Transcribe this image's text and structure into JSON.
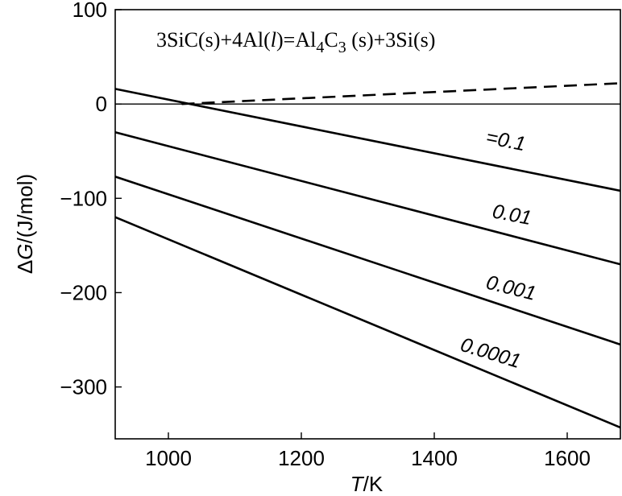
{
  "chart_data": {
    "type": "line",
    "title": "3SiC(s)+4Al(l)=Al4C3(s)+3Si(s)",
    "equation_parts": {
      "a": "3SiC(s)+4Al(",
      "l": "l",
      "b": ")=Al",
      "sub4": "4",
      "c": "C",
      "sub3": "3",
      "d": " (s)+3Si(s)"
    },
    "xlabel": {
      "var": "T",
      "unit": "/K"
    },
    "ylabel": {
      "delta": "Δ",
      "var": "G",
      "unit": "/(J/mol)"
    },
    "xlim": [
      920,
      1680
    ],
    "ylim": [
      -355,
      100
    ],
    "xticks": [
      1000,
      1200,
      1400,
      1600
    ],
    "xtick_labels": [
      "1000",
      "1200",
      "1400",
      "1600"
    ],
    "yticks": [
      100,
      0,
      -100,
      -200,
      -300
    ],
    "ytick_labels": [
      "100",
      "0",
      "−100",
      "−200",
      "−300"
    ],
    "zero_line": true,
    "series": [
      {
        "name": "=0.1",
        "segments": [
          {
            "style": "solid",
            "x": [
              920,
              1680
            ],
            "y": [
              16,
              -92
            ]
          },
          {
            "style": "dashed",
            "x": [
              1020,
              1680
            ],
            "y": [
              0,
              22
            ]
          }
        ]
      },
      {
        "name": "0.01",
        "segments": [
          {
            "style": "solid",
            "x": [
              920,
              1680
            ],
            "y": [
              -30,
              -170
            ]
          }
        ]
      },
      {
        "name": "0.001",
        "segments": [
          {
            "style": "solid",
            "x": [
              920,
              1680
            ],
            "y": [
              -77,
              -255
            ]
          }
        ]
      },
      {
        "name": "0.0001",
        "segments": [
          {
            "style": "solid",
            "x": [
              920,
              1680
            ],
            "y": [
              -120,
              -343
            ]
          }
        ]
      }
    ]
  }
}
